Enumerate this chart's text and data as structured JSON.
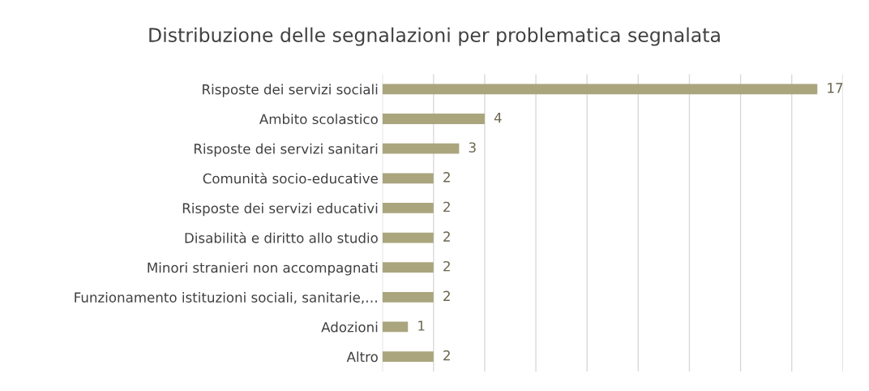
{
  "chart_data": {
    "type": "bar",
    "orientation": "horizontal",
    "title": "Distribuzione delle segnalazioni per problematica segnalata",
    "categories": [
      "Risposte dei servizi sociali",
      "Ambito scolastico",
      "Risposte dei servizi sanitari",
      "Comunità socio-educative",
      "Risposte dei servizi educativi",
      "Disabilità e diritto allo studio",
      "Minori stranieri non accompagnati",
      "Funzionamento istituzioni sociali, sanitarie,…",
      "Adozioni",
      "Altro"
    ],
    "values": [
      17,
      4,
      3,
      2,
      2,
      2,
      2,
      2,
      1,
      2
    ],
    "color": "#aaa57d",
    "xlim": [
      0,
      18
    ],
    "xticks": [
      {
        "value": 0,
        "label": null
      },
      {
        "value": 2,
        "label": null
      },
      {
        "value": 4,
        "label": null
      },
      {
        "value": 6,
        "label": null
      },
      {
        "value": 8,
        "label": null
      },
      {
        "value": 10,
        "label": null
      },
      {
        "value": 12,
        "label": null
      },
      {
        "value": 14,
        "label": null
      },
      {
        "value": 16,
        "label": null
      },
      {
        "value": 18,
        "label": null
      }
    ],
    "tick_labels": "y",
    "grid": "x",
    "data_labels": true,
    "legend": false
  }
}
